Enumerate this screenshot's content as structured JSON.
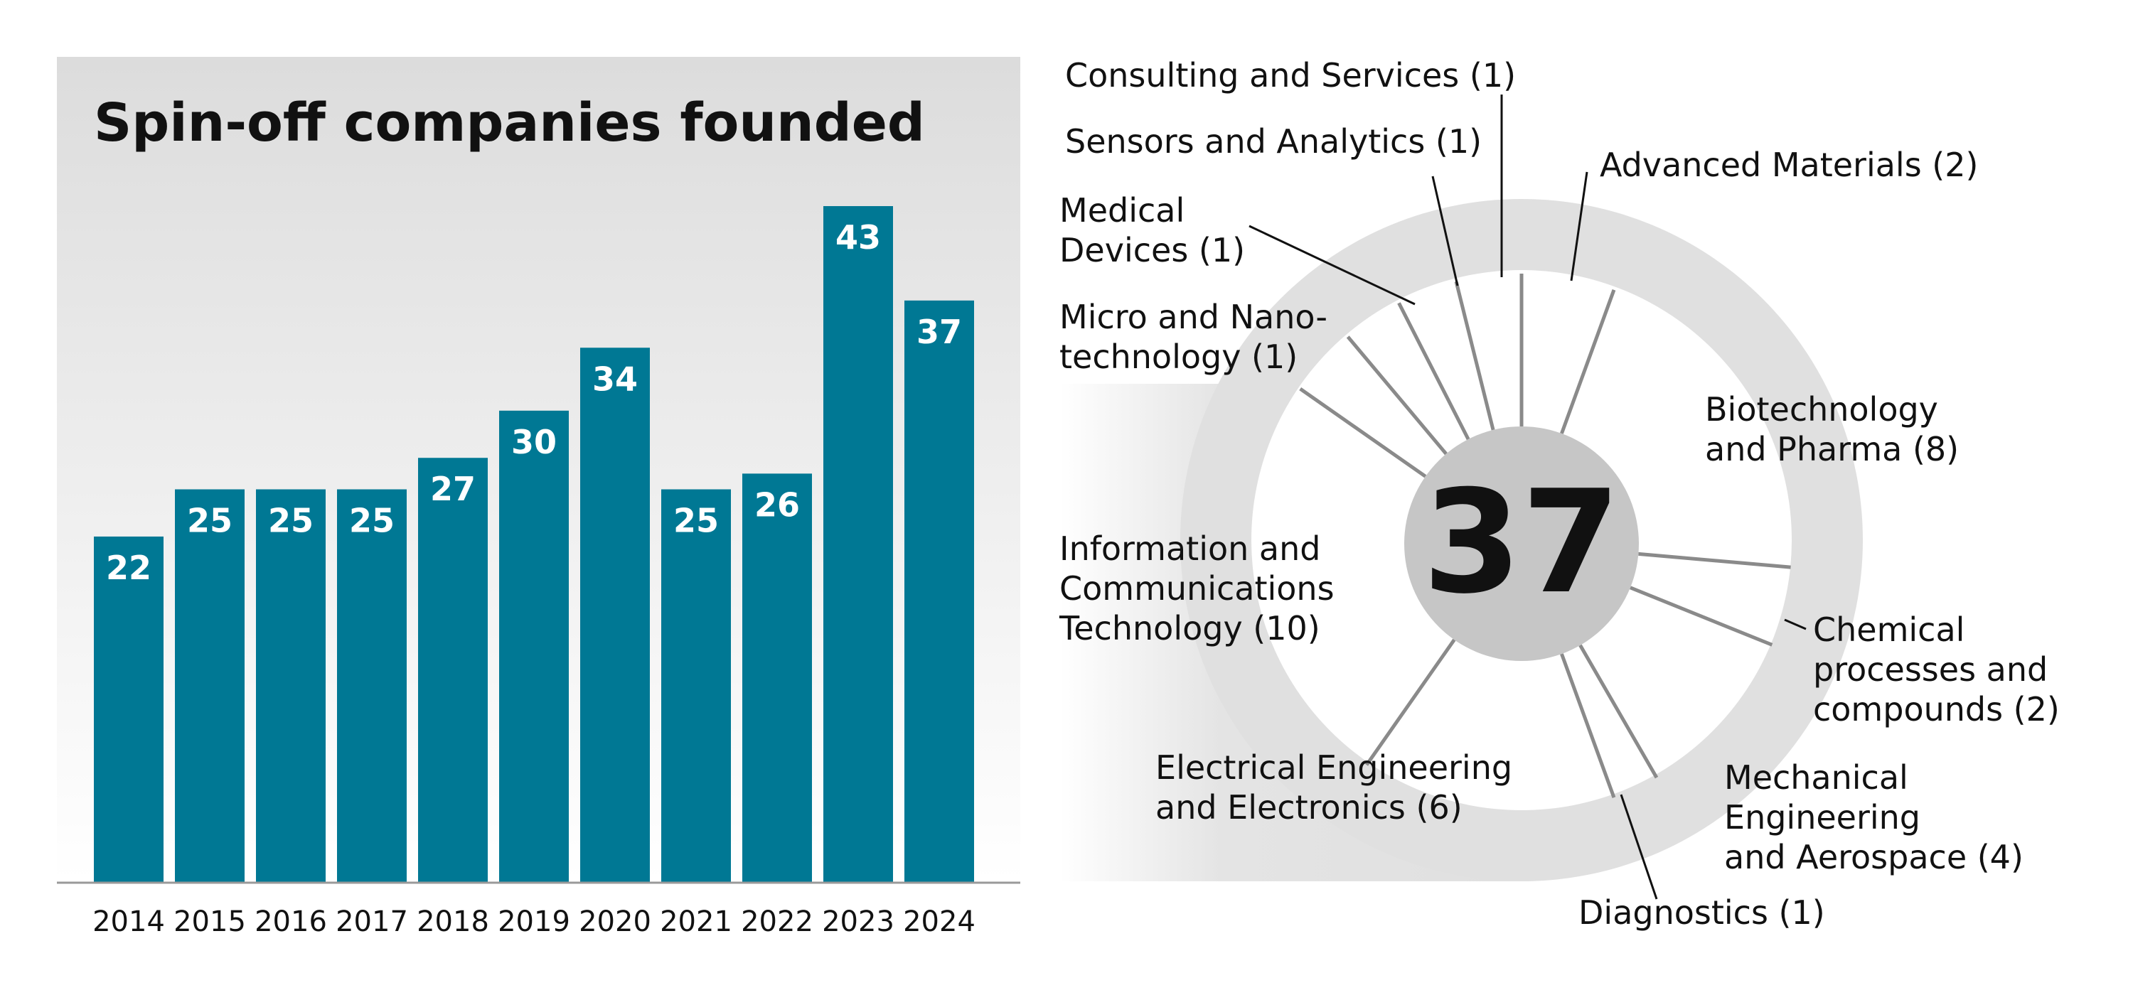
{
  "colors": {
    "bar": "#007894",
    "bar_label": "#ffffff",
    "panel_top": "#dcdcdc",
    "panel_bottom": "#ffffff",
    "ring": "#e0e0e0",
    "center_disc": "#c6c6c6",
    "spoke": "#8a8a8a",
    "text": "#111111"
  },
  "chart_data": [
    {
      "type": "bar",
      "title": "Spin-off companies founded",
      "categories": [
        "2014",
        "2015",
        "2016",
        "2017",
        "2018",
        "2019",
        "2020",
        "2021",
        "2022",
        "2023",
        "2024"
      ],
      "values": [
        22,
        25,
        25,
        25,
        27,
        30,
        34,
        25,
        26,
        43,
        37
      ],
      "xlabel": "",
      "ylabel": "",
      "ylim": [
        0,
        43
      ],
      "grid": false,
      "data_labels": true
    },
    {
      "type": "pie",
      "style": "radial-spoke",
      "total": 37,
      "categories": [
        {
          "name": "Consulting and Services",
          "value": 1,
          "label": "Consulting and Services (1)"
        },
        {
          "name": "Advanced Materials",
          "value": 2,
          "label": "Advanced Materials (2)"
        },
        {
          "name": "Biotechnology and Pharma",
          "value": 8,
          "label": "Biotechnology and Pharma (8)"
        },
        {
          "name": "Chemical processes and compounds",
          "value": 2,
          "label": "Chemical processes and compounds (2)"
        },
        {
          "name": "Mechanical Engineering and Aerospace",
          "value": 4,
          "label": "Mechanical Engineering and Aerospace (4)"
        },
        {
          "name": "Diagnostics",
          "value": 1,
          "label": "Diagnostics (1)"
        },
        {
          "name": "Electrical Engineering and Electronics",
          "value": 6,
          "label": "Electrical Engineering and Electronics (6)"
        },
        {
          "name": "Information and Communications Technology",
          "value": 10,
          "label": "Information and Communications Technology (10)"
        },
        {
          "name": "Micro and Nanotechnology",
          "value": 1,
          "label": "Micro and Nano-technology (1)"
        },
        {
          "name": "Medical Devices",
          "value": 1,
          "label": "Medical Devices (1)"
        },
        {
          "name": "Sensors and Analytics",
          "value": 1,
          "label": "Sensors and Analytics (1)"
        }
      ]
    }
  ],
  "donut_labels": {
    "consulting": [
      "Consulting and Services (1)"
    ],
    "sensors": [
      "Sensors and Analytics (1)"
    ],
    "advanced": [
      "Advanced Materials (2)"
    ],
    "medical": [
      "Medical",
      "Devices (1)"
    ],
    "micro": [
      "Micro and Nano-",
      "technology (1)"
    ],
    "biotech": [
      "Biotechnology",
      "and Pharma (8)"
    ],
    "ict": [
      "Information and",
      "Communications",
      "Technology (10)"
    ],
    "chemical": [
      "Chemical",
      "processes and",
      "compounds (2)"
    ],
    "electrical": [
      "Electrical Engineering",
      "and Electronics (6)"
    ],
    "mechanical": [
      "Mechanical",
      "Engineering",
      "and Aerospace (4)"
    ],
    "diagnostics": [
      "Diagnostics (1)"
    ]
  }
}
